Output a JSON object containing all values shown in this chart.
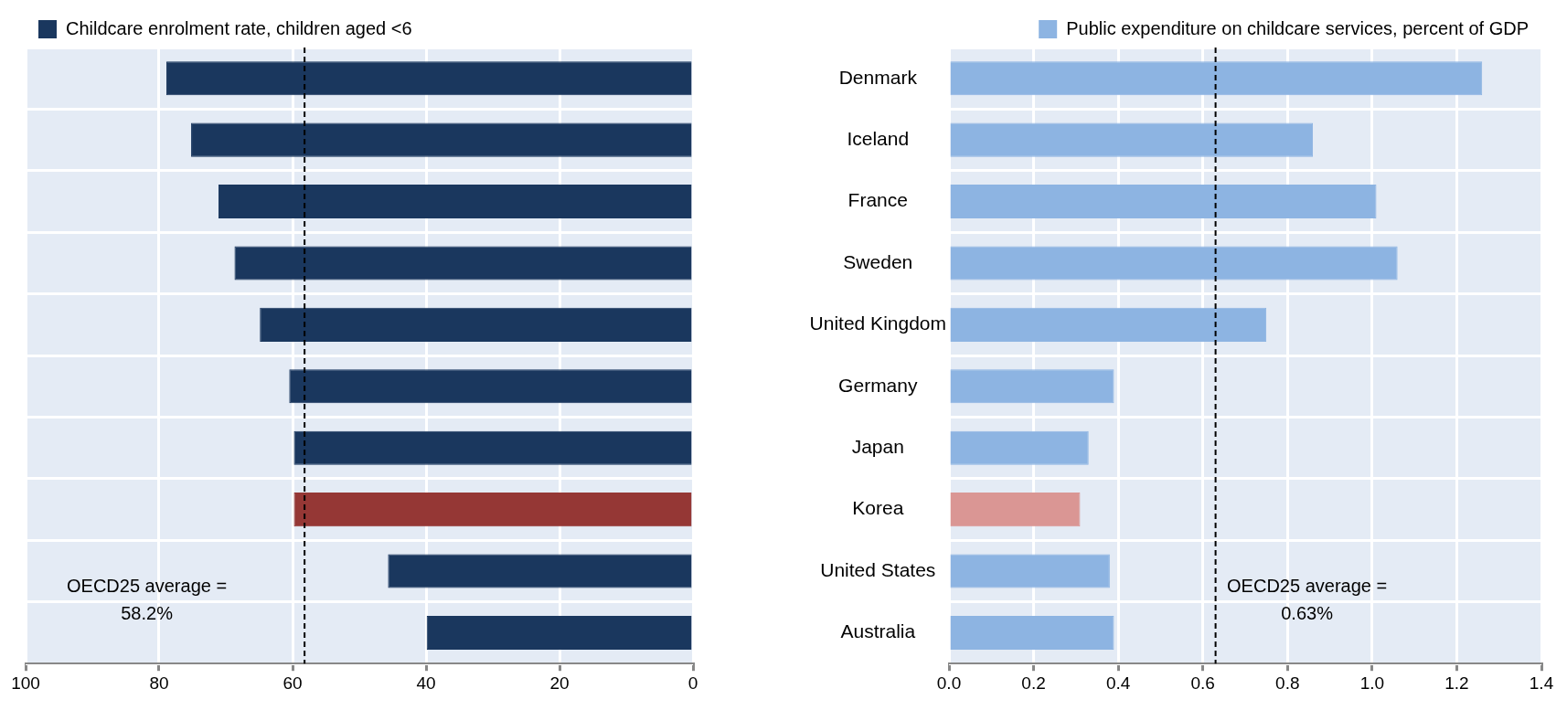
{
  "chart_data": [
    {
      "type": "bar",
      "orientation": "horizontal",
      "categories": [
        null,
        null,
        null,
        null,
        null,
        null,
        null,
        null,
        null,
        null
      ],
      "series": [
        {
          "name": "Childcare enrolment rate, children aged <6",
          "color": "#1a375e",
          "colors": [
            "#1a375e",
            "#1a375e",
            "#1a375e",
            "#1a375e",
            "#1a375e",
            "#1a375e",
            "#1a375e",
            "#953735",
            "#1a375e",
            "#1a375e"
          ],
          "values": [
            78.9,
            75.2,
            71.1,
            68.7,
            64.9,
            60.5,
            59.8,
            59.8,
            45.7,
            39.9
          ]
        }
      ],
      "xlim": [
        100,
        0
      ],
      "xticks": [
        100,
        80,
        60,
        40,
        20,
        0
      ],
      "grid": true,
      "legend": "top left",
      "tick_labels": "x",
      "ref_lines": [
        {
          "axis": "x",
          "value": 58.2,
          "label": "OECD25 average = 58.2%",
          "line_style": "dashed",
          "color": "#000000"
        }
      ]
    },
    {
      "type": "bar",
      "orientation": "horizontal",
      "categories": [
        "Denmark",
        "Iceland",
        "France",
        "Sweden",
        "United Kingdom",
        "Germany",
        "Japan",
        "Korea",
        "United States",
        "Australia"
      ],
      "series": [
        {
          "name": "Public expenditure on childcare services, percent of GDP",
          "color": "#8db4e2",
          "colors": [
            "#8db4e2",
            "#8db4e2",
            "#8db4e2",
            "#8db4e2",
            "#8db4e2",
            "#8db4e2",
            "#8db4e2",
            "#da9694",
            "#8db4e2",
            "#8db4e2"
          ],
          "values": [
            1.26,
            0.86,
            1.01,
            1.06,
            0.75,
            0.39,
            0.33,
            0.31,
            0.38,
            0.39
          ]
        }
      ],
      "xlim": [
        0,
        1.4
      ],
      "xticks": [
        {
          "value": 0,
          "label": "0.0"
        },
        {
          "value": 0.2,
          "label": "0.2"
        },
        {
          "value": 0.4,
          "label": "0.4"
        },
        {
          "value": 0.6,
          "label": "0.6"
        },
        {
          "value": 0.8,
          "label": "0.8"
        },
        {
          "value": 1,
          "label": "1.0"
        },
        {
          "value": 1.2,
          "label": "1.2"
        },
        {
          "value": 1.4,
          "label": "1.4"
        }
      ],
      "grid": true,
      "legend": "top right",
      "ref_lines": [
        {
          "axis": "x",
          "value": 0.63,
          "label": "OECD25 average = 0.63%",
          "line_style": "dashed",
          "color": "#000000"
        }
      ]
    }
  ]
}
